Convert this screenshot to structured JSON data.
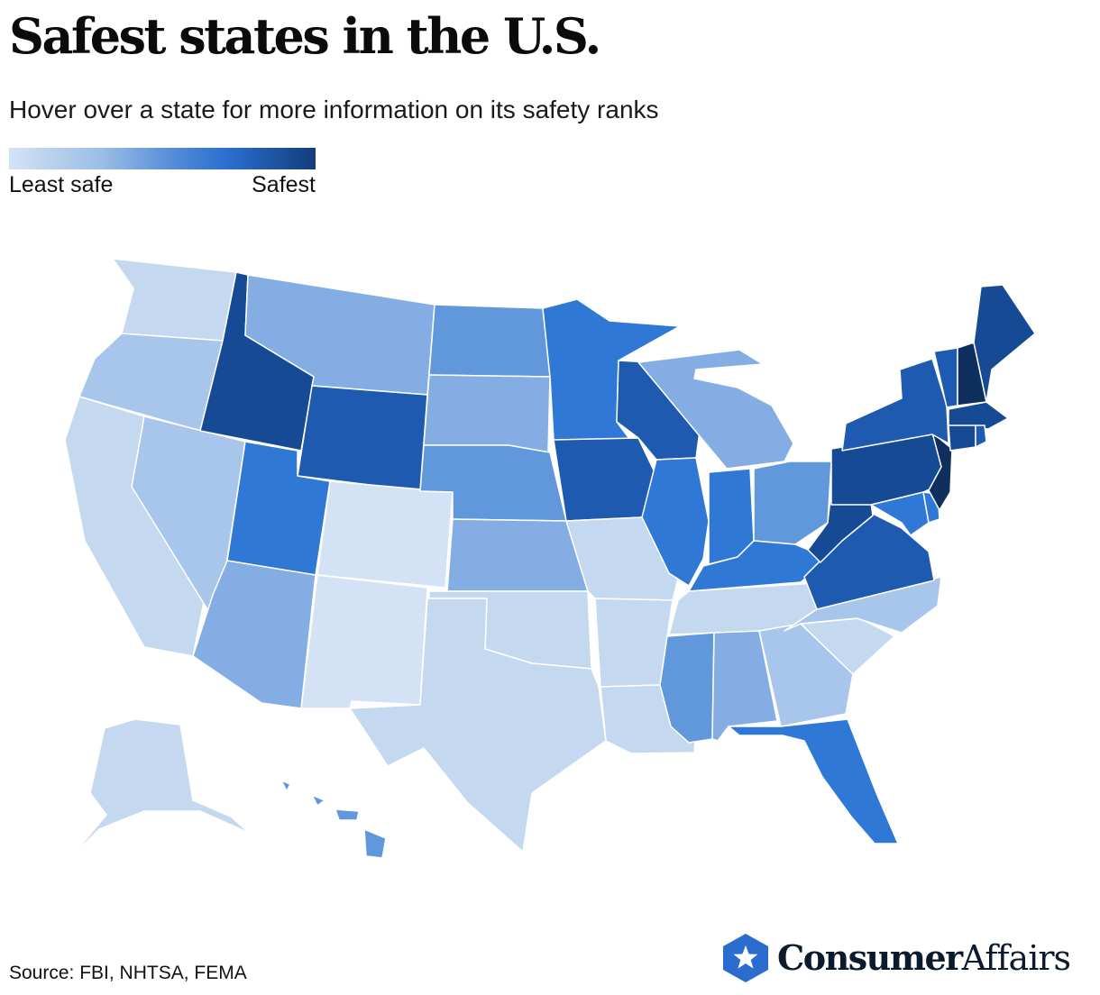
{
  "header": {
    "title": "Safest states in the U.S.",
    "subtitle": "Hover over a state for more information on its safety ranks"
  },
  "legend": {
    "min_label": "Least safe",
    "max_label": "Safest",
    "scale_colors": [
      "#d3e3f5",
      "#9cbde6",
      "#4f8ad8",
      "#2a6dcf",
      "#133d7a"
    ]
  },
  "footer": {
    "source": "Source: FBI, NHTSA, FEMA",
    "logo_bold": "Consumer",
    "logo_light": "Affairs",
    "logo_color": "#2a6dcf"
  },
  "map": {
    "states": [
      {
        "id": "WA",
        "name": "Washington",
        "shade": 1
      },
      {
        "id": "OR",
        "name": "Oregon",
        "shade": 2
      },
      {
        "id": "CA",
        "name": "California",
        "shade": 1
      },
      {
        "id": "NV",
        "name": "Nevada",
        "shade": 2
      },
      {
        "id": "ID",
        "name": "Idaho",
        "shade": 7
      },
      {
        "id": "MT",
        "name": "Montana",
        "shade": 3
      },
      {
        "id": "WY",
        "name": "Wyoming",
        "shade": 6
      },
      {
        "id": "UT",
        "name": "Utah",
        "shade": 5
      },
      {
        "id": "AZ",
        "name": "Arizona",
        "shade": 3
      },
      {
        "id": "CO",
        "name": "Colorado",
        "shade": 0
      },
      {
        "id": "NM",
        "name": "New Mexico",
        "shade": 0
      },
      {
        "id": "ND",
        "name": "North Dakota",
        "shade": 4
      },
      {
        "id": "SD",
        "name": "South Dakota",
        "shade": 3
      },
      {
        "id": "NE",
        "name": "Nebraska",
        "shade": 4
      },
      {
        "id": "KS",
        "name": "Kansas",
        "shade": 3
      },
      {
        "id": "OK",
        "name": "Oklahoma",
        "shade": 1
      },
      {
        "id": "TX",
        "name": "Texas",
        "shade": 1
      },
      {
        "id": "MN",
        "name": "Minnesota",
        "shade": 5
      },
      {
        "id": "IA",
        "name": "Iowa",
        "shade": 6
      },
      {
        "id": "MO",
        "name": "Missouri",
        "shade": 1
      },
      {
        "id": "AR",
        "name": "Arkansas",
        "shade": 1
      },
      {
        "id": "LA",
        "name": "Louisiana",
        "shade": 1
      },
      {
        "id": "WI",
        "name": "Wisconsin",
        "shade": 6
      },
      {
        "id": "IL",
        "name": "Illinois",
        "shade": 5
      },
      {
        "id": "MI",
        "name": "Michigan",
        "shade": 3
      },
      {
        "id": "IN",
        "name": "Indiana",
        "shade": 5
      },
      {
        "id": "OH",
        "name": "Ohio",
        "shade": 4
      },
      {
        "id": "KY",
        "name": "Kentucky",
        "shade": 5
      },
      {
        "id": "TN",
        "name": "Tennessee",
        "shade": 1
      },
      {
        "id": "MS",
        "name": "Mississippi",
        "shade": 4
      },
      {
        "id": "AL",
        "name": "Alabama",
        "shade": 3
      },
      {
        "id": "GA",
        "name": "Georgia",
        "shade": 2
      },
      {
        "id": "FL",
        "name": "Florida",
        "shade": 5
      },
      {
        "id": "SC",
        "name": "South Carolina",
        "shade": 1
      },
      {
        "id": "NC",
        "name": "North Carolina",
        "shade": 2
      },
      {
        "id": "VA",
        "name": "Virginia",
        "shade": 6
      },
      {
        "id": "WV",
        "name": "West Virginia",
        "shade": 7
      },
      {
        "id": "MD",
        "name": "Maryland",
        "shade": 5
      },
      {
        "id": "DE",
        "name": "Delaware",
        "shade": 5
      },
      {
        "id": "PA",
        "name": "Pennsylvania",
        "shade": 7
      },
      {
        "id": "NJ",
        "name": "New Jersey",
        "shade": 8
      },
      {
        "id": "NY",
        "name": "New York",
        "shade": 6
      },
      {
        "id": "CT",
        "name": "Connecticut",
        "shade": 7
      },
      {
        "id": "RI",
        "name": "Rhode Island",
        "shade": 6
      },
      {
        "id": "MA",
        "name": "Massachusetts",
        "shade": 7
      },
      {
        "id": "VT",
        "name": "Vermont",
        "shade": 6
      },
      {
        "id": "NH",
        "name": "New Hampshire",
        "shade": 8
      },
      {
        "id": "ME",
        "name": "Maine",
        "shade": 7
      },
      {
        "id": "AK",
        "name": "Alaska",
        "shade": 1
      },
      {
        "id": "HI",
        "name": "Hawaii",
        "shade": 4
      }
    ],
    "shade_colors": [
      "#d3e3f5",
      "#c4d8f0",
      "#a8c6eb",
      "#84aee3",
      "#6198dc",
      "#2f78d5",
      "#1e5bb0",
      "#174a95",
      "#0f2f5e"
    ]
  }
}
